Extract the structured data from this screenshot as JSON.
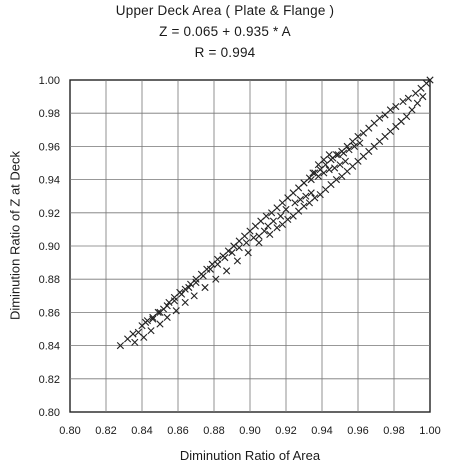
{
  "chart_data": {
    "type": "scatter",
    "title": "Upper Deck Area ( Plate & Flange )",
    "subtitle_lines": [
      "Z = 0.065 + 0.935 * A",
      "R = 0.994"
    ],
    "xlabel": "Diminution Ratio of Area",
    "ylabel": "Diminution Ratio of Z at Deck",
    "xlim": [
      0.8,
      1.0
    ],
    "ylim": [
      0.8,
      1.0
    ],
    "xticks": [
      "0.80",
      "0.82",
      "0.84",
      "0.86",
      "0.88",
      "0.90",
      "0.92",
      "0.94",
      "0.96",
      "0.98",
      "1.00"
    ],
    "yticks": [
      "0.80",
      "0.82",
      "0.84",
      "0.86",
      "0.88",
      "0.90",
      "0.92",
      "0.94",
      "0.96",
      "0.98",
      "1.00"
    ],
    "grid": true,
    "marker": "x",
    "points": [
      [
        0.828,
        0.84
      ],
      [
        0.832,
        0.844
      ],
      [
        0.835,
        0.847
      ],
      [
        0.838,
        0.848
      ],
      [
        0.84,
        0.852
      ],
      [
        0.843,
        0.855
      ],
      [
        0.846,
        0.856
      ],
      [
        0.849,
        0.86
      ],
      [
        0.852,
        0.862
      ],
      [
        0.855,
        0.866
      ],
      [
        0.858,
        0.869
      ],
      [
        0.861,
        0.872
      ],
      [
        0.864,
        0.874
      ],
      [
        0.867,
        0.877
      ],
      [
        0.87,
        0.88
      ],
      [
        0.873,
        0.883
      ],
      [
        0.876,
        0.886
      ],
      [
        0.879,
        0.889
      ],
      [
        0.882,
        0.892
      ],
      [
        0.885,
        0.894
      ],
      [
        0.888,
        0.897
      ],
      [
        0.891,
        0.9
      ],
      [
        0.894,
        0.903
      ],
      [
        0.897,
        0.906
      ],
      [
        0.9,
        0.909
      ],
      [
        0.903,
        0.912
      ],
      [
        0.906,
        0.915
      ],
      [
        0.909,
        0.918
      ],
      [
        0.912,
        0.92
      ],
      [
        0.915,
        0.923
      ],
      [
        0.918,
        0.926
      ],
      [
        0.921,
        0.929
      ],
      [
        0.924,
        0.932
      ],
      [
        0.927,
        0.935
      ],
      [
        0.93,
        0.938
      ],
      [
        0.933,
        0.941
      ],
      [
        0.936,
        0.944
      ],
      [
        0.939,
        0.946
      ],
      [
        0.942,
        0.949
      ],
      [
        0.945,
        0.952
      ],
      [
        0.948,
        0.955
      ],
      [
        0.951,
        0.957
      ],
      [
        0.954,
        0.96
      ],
      [
        0.957,
        0.963
      ],
      [
        0.96,
        0.966
      ],
      [
        0.963,
        0.968
      ],
      [
        0.966,
        0.971
      ],
      [
        0.969,
        0.974
      ],
      [
        0.972,
        0.977
      ],
      [
        0.975,
        0.979
      ],
      [
        0.978,
        0.982
      ],
      [
        0.981,
        0.984
      ],
      [
        0.985,
        0.987
      ],
      [
        0.988,
        0.989
      ],
      [
        0.992,
        0.992
      ],
      [
        0.995,
        0.995
      ],
      [
        0.998,
        0.998
      ],
      [
        1.0,
        1.0
      ],
      [
        0.836,
        0.842
      ],
      [
        0.841,
        0.845
      ],
      [
        0.845,
        0.849
      ],
      [
        0.85,
        0.853
      ],
      [
        0.854,
        0.857
      ],
      [
        0.859,
        0.861
      ],
      [
        0.864,
        0.866
      ],
      [
        0.869,
        0.87
      ],
      [
        0.875,
        0.875
      ],
      [
        0.881,
        0.88
      ],
      [
        0.887,
        0.885
      ],
      [
        0.893,
        0.891
      ],
      [
        0.899,
        0.896
      ],
      [
        0.905,
        0.902
      ],
      [
        0.911,
        0.907
      ],
      [
        0.915,
        0.911
      ],
      [
        0.918,
        0.913
      ],
      [
        0.921,
        0.916
      ],
      [
        0.924,
        0.918
      ],
      [
        0.927,
        0.921
      ],
      [
        0.93,
        0.924
      ],
      [
        0.933,
        0.926
      ],
      [
        0.936,
        0.929
      ],
      [
        0.939,
        0.931
      ],
      [
        0.942,
        0.934
      ],
      [
        0.945,
        0.937
      ],
      [
        0.948,
        0.94
      ],
      [
        0.951,
        0.942
      ],
      [
        0.954,
        0.945
      ],
      [
        0.957,
        0.948
      ],
      [
        0.96,
        0.951
      ],
      [
        0.963,
        0.954
      ],
      [
        0.966,
        0.957
      ],
      [
        0.969,
        0.96
      ],
      [
        0.972,
        0.963
      ],
      [
        0.975,
        0.966
      ],
      [
        0.978,
        0.969
      ],
      [
        0.981,
        0.972
      ],
      [
        0.984,
        0.975
      ],
      [
        0.987,
        0.978
      ],
      [
        0.99,
        0.982
      ],
      [
        0.993,
        0.986
      ],
      [
        0.996,
        0.99
      ],
      [
        0.93,
        0.938
      ],
      [
        0.934,
        0.94
      ],
      [
        0.938,
        0.942
      ],
      [
        0.941,
        0.944
      ],
      [
        0.944,
        0.946
      ],
      [
        0.947,
        0.947
      ],
      [
        0.95,
        0.949
      ],
      [
        0.953,
        0.951
      ],
      [
        0.946,
        0.953
      ],
      [
        0.949,
        0.955
      ],
      [
        0.952,
        0.956
      ],
      [
        0.955,
        0.958
      ],
      [
        0.958,
        0.96
      ],
      [
        0.961,
        0.962
      ],
      [
        0.935,
        0.944
      ],
      [
        0.938,
        0.949
      ],
      [
        0.941,
        0.952
      ],
      [
        0.944,
        0.955
      ],
      [
        0.925,
        0.926
      ],
      [
        0.928,
        0.928
      ],
      [
        0.931,
        0.93
      ],
      [
        0.934,
        0.932
      ],
      [
        0.92,
        0.922
      ],
      [
        0.917,
        0.918
      ],
      [
        0.913,
        0.915
      ],
      [
        0.91,
        0.912
      ],
      [
        0.908,
        0.909
      ],
      [
        0.905,
        0.906
      ],
      [
        0.902,
        0.905
      ],
      [
        0.898,
        0.902
      ],
      [
        0.894,
        0.899
      ],
      [
        0.89,
        0.896
      ],
      [
        0.886,
        0.893
      ],
      [
        0.882,
        0.889
      ],
      [
        0.878,
        0.886
      ],
      [
        0.874,
        0.882
      ],
      [
        0.87,
        0.878
      ],
      [
        0.866,
        0.875
      ],
      [
        0.862,
        0.871
      ],
      [
        0.858,
        0.867
      ],
      [
        0.854,
        0.864
      ],
      [
        0.85,
        0.86
      ],
      [
        0.846,
        0.857
      ],
      [
        0.842,
        0.854
      ]
    ]
  }
}
